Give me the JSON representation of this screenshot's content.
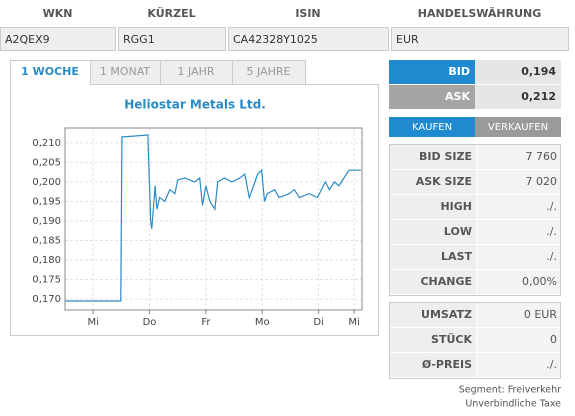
{
  "header": {
    "labels": [
      "WKN",
      "KÜRZEL",
      "ISIN",
      "HANDELSWÄHRUNG"
    ],
    "values": [
      "A2QEX9",
      "RGG1",
      "CA42328Y1025",
      "EUR"
    ]
  },
  "tabs": [
    "1 WOCHE",
    "1 MONAT",
    "1 JAHR",
    "5 JAHRE"
  ],
  "quote": {
    "bid": {
      "label": "BID",
      "value": "0,194"
    },
    "ask": {
      "label": "ASK",
      "value": "0,212"
    }
  },
  "buttons": [
    "KAUFEN",
    "VERKAUFEN"
  ],
  "stats": [
    [
      "BID SIZE",
      "7 760"
    ],
    [
      "ASK SIZE",
      "7 020"
    ],
    [
      "HIGH",
      "./."
    ],
    [
      "LOW",
      "./."
    ],
    [
      "LAST",
      "./."
    ],
    [
      "CHANGE",
      "0,00%"
    ]
  ],
  "stats2": [
    [
      "UMSATZ",
      "0 EUR"
    ],
    [
      "STÜCK",
      "0"
    ],
    [
      "Ø-PREIS",
      "./."
    ]
  ],
  "footer": [
    "Segment: Freiverkehr",
    "Unverbindliche Taxe"
  ],
  "chart_data": {
    "type": "line",
    "title": "Heliostar Metals Ltd.",
    "color": "#2a8ac4",
    "grid": true,
    "x": [
      -0.49,
      0.49,
      0.51,
      0.97,
      1.02,
      1.04,
      1.1,
      1.13,
      1.18,
      1.27,
      1.36,
      1.45,
      1.5,
      1.63,
      1.8,
      1.89,
      1.94,
      2.0,
      2.07,
      2.16,
      2.21,
      2.33,
      2.46,
      2.6,
      2.69,
      2.77,
      2.92,
      2.99,
      3.04,
      3.09,
      3.22,
      3.3,
      3.48,
      3.57,
      3.66,
      3.83,
      3.98,
      4.05,
      4.12,
      4.19,
      4.28,
      4.36,
      4.45,
      4.54,
      4.75
    ],
    "series": [
      {
        "name": "Heliostar Metals Ltd.",
        "color": "#2a8ac4",
        "values": [
          0.1695,
          0.1695,
          0.2115,
          0.212,
          0.19,
          0.188,
          0.199,
          0.193,
          0.196,
          0.195,
          0.198,
          0.197,
          0.2005,
          0.201,
          0.2,
          0.201,
          0.194,
          0.199,
          0.195,
          0.193,
          0.2,
          0.201,
          0.2,
          0.201,
          0.202,
          0.196,
          0.202,
          0.203,
          0.195,
          0.197,
          0.198,
          0.196,
          0.197,
          0.198,
          0.196,
          0.197,
          0.196,
          0.198,
          0.2,
          0.198,
          0.2,
          0.199,
          0.201,
          0.203,
          0.203
        ]
      }
    ],
    "xlim": [
      -0.5,
      4.77
    ],
    "xticks": [
      {
        "value": 0,
        "label": "Mi"
      },
      {
        "value": 1,
        "label": "Do"
      },
      {
        "value": 2,
        "label": "Fr"
      },
      {
        "value": 3,
        "label": "Mo"
      },
      {
        "value": 4,
        "label": "Di"
      },
      {
        "value": 4.63,
        "label": "Mi"
      }
    ],
    "ylim": [
      0.1672,
      0.2138
    ],
    "yticks": [
      {
        "value": 0.17,
        "label": "0,170"
      },
      {
        "value": 0.175,
        "label": "0,175"
      },
      {
        "value": 0.18,
        "label": "0,180"
      },
      {
        "value": 0.185,
        "label": "0,185"
      },
      {
        "value": 0.19,
        "label": "0,190"
      },
      {
        "value": 0.195,
        "label": "0,195"
      },
      {
        "value": 0.2,
        "label": "0,200"
      },
      {
        "value": 0.205,
        "label": "0,205"
      },
      {
        "value": 0.21,
        "label": "0,210"
      }
    ]
  }
}
